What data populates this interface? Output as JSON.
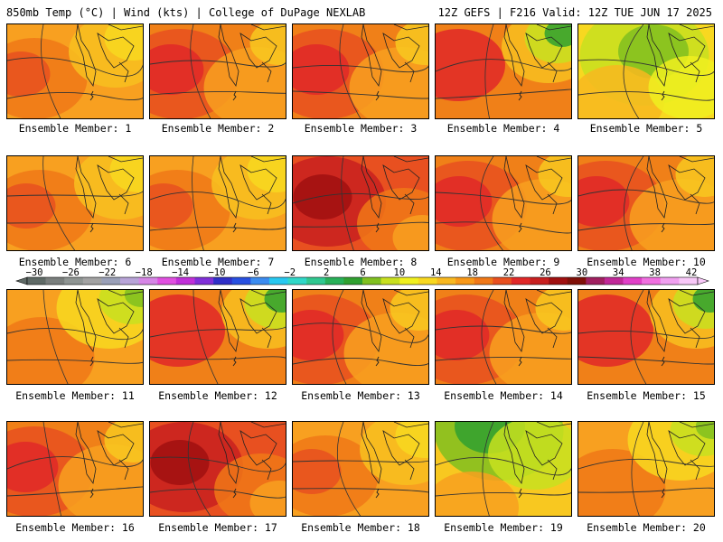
{
  "header": {
    "left_title": "850mb Temp (°C) | Wind (kts) | College of DuPage NEXLAB",
    "right_title": "12Z GEFS | F216 Valid: 12Z TUE JUN 17 2025"
  },
  "colorbar": {
    "labels": [
      "-30",
      "-26",
      "-22",
      "-18",
      "-14",
      "-10",
      "-6",
      "-2",
      "2",
      "6",
      "10",
      "14",
      "18",
      "22",
      "26",
      "30",
      "34",
      "38",
      "42"
    ],
    "colors": [
      "#5f6a66",
      "#7a7f7d",
      "#8f9593",
      "#a3a3a3",
      "#9aa0b8",
      "#b8a4d8",
      "#d686e6",
      "#e050e0",
      "#c030d8",
      "#8030d8",
      "#3030c8",
      "#2850e0",
      "#3c8cf0",
      "#28c8f0",
      "#30d8c8",
      "#30c890",
      "#28b058",
      "#30a030",
      "#80c020",
      "#c8e020",
      "#f0f020",
      "#f8d820",
      "#f8b820",
      "#f89818",
      "#f07818",
      "#e85020",
      "#e02828",
      "#c82020",
      "#a01010",
      "#801008",
      "#a02060",
      "#c02898",
      "#e040c8",
      "#f070e0",
      "#f0a0f0",
      "#f8c8f8"
    ]
  },
  "panels": [
    {
      "label": "Ensemble Member: 1",
      "scheme": "warm"
    },
    {
      "label": "Ensemble Member: 2",
      "scheme": "hot"
    },
    {
      "label": "Ensemble Member: 3",
      "scheme": "hot"
    },
    {
      "label": "Ensemble Member: 4",
      "scheme": "hotgreen"
    },
    {
      "label": "Ensemble Member: 5",
      "scheme": "mild"
    },
    {
      "label": "Ensemble Member: 6",
      "scheme": "warm"
    },
    {
      "label": "Ensemble Member: 7",
      "scheme": "warm"
    },
    {
      "label": "Ensemble Member: 8",
      "scheme": "veryhot"
    },
    {
      "label": "Ensemble Member: 9",
      "scheme": "hot"
    },
    {
      "label": "Ensemble Member: 10",
      "scheme": "hot"
    },
    {
      "label": "Ensemble Member: 11",
      "scheme": "warmgreen"
    },
    {
      "label": "Ensemble Member: 12",
      "scheme": "hotgreen"
    },
    {
      "label": "Ensemble Member: 13",
      "scheme": "hot"
    },
    {
      "label": "Ensemble Member: 14",
      "scheme": "hot"
    },
    {
      "label": "Ensemble Member: 15",
      "scheme": "hotgreen"
    },
    {
      "label": "Ensemble Member: 16",
      "scheme": "hot"
    },
    {
      "label": "Ensemble Member: 17",
      "scheme": "veryhot"
    },
    {
      "label": "Ensemble Member: 18",
      "scheme": "warm"
    },
    {
      "label": "Ensemble Member: 19",
      "scheme": "cool"
    },
    {
      "label": "Ensemble Member: 20",
      "scheme": "warmgreen"
    }
  ]
}
